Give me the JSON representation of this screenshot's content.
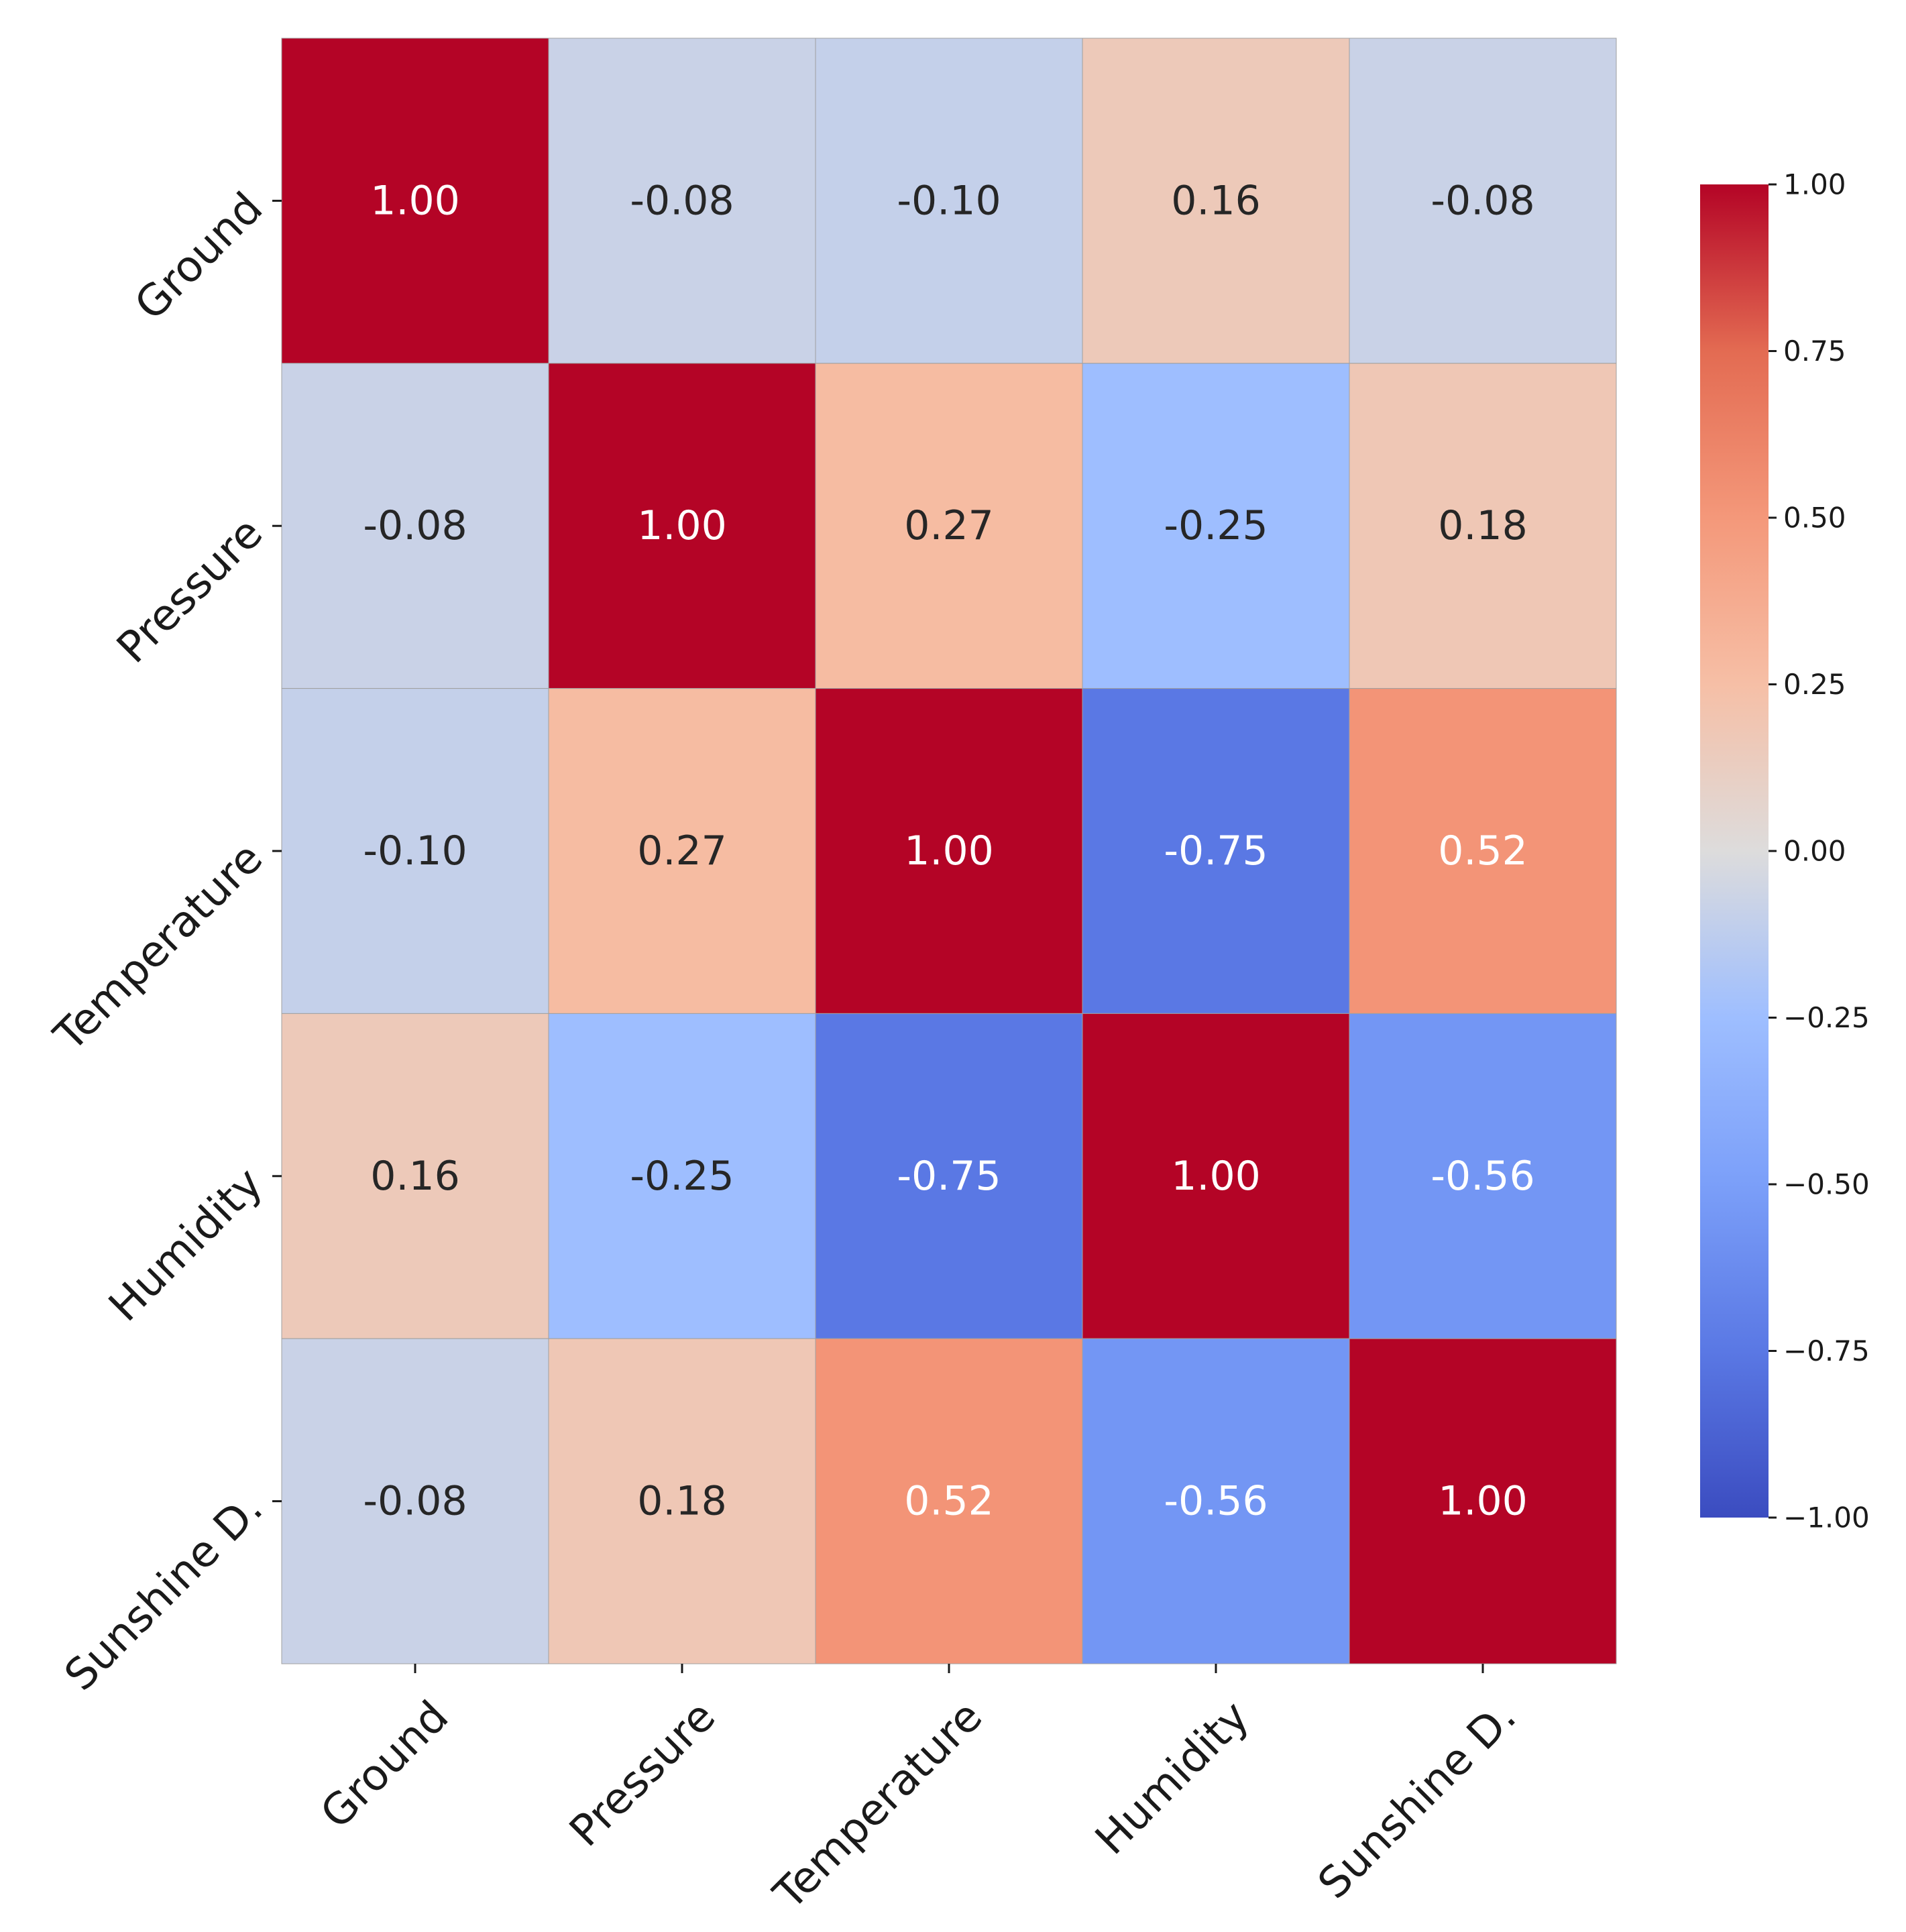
{
  "chart_data": {
    "type": "heatmap",
    "title": "",
    "xlabel": "",
    "ylabel": "",
    "row_labels": [
      "Ground",
      "Pressure",
      "Temperature",
      "Humidity",
      "Sunshine D."
    ],
    "col_labels": [
      "Ground",
      "Pressure",
      "Temperature",
      "Humidity",
      "Sunshine D."
    ],
    "values": [
      [
        1.0,
        -0.08,
        -0.1,
        0.16,
        -0.08
      ],
      [
        -0.08,
        1.0,
        0.27,
        -0.25,
        0.18
      ],
      [
        -0.1,
        0.27,
        1.0,
        -0.75,
        0.52
      ],
      [
        0.16,
        -0.25,
        -0.75,
        1.0,
        -0.56
      ],
      [
        -0.08,
        0.18,
        0.52,
        -0.56,
        1.0
      ]
    ],
    "annotations": [
      [
        "1.00",
        "-0.08",
        "-0.10",
        "0.16",
        "-0.08"
      ],
      [
        "-0.08",
        "1.00",
        "0.27",
        "-0.25",
        "0.18"
      ],
      [
        "-0.10",
        "0.27",
        "1.00",
        "-0.75",
        "0.52"
      ],
      [
        "0.16",
        "-0.25",
        "-0.75",
        "1.00",
        "-0.56"
      ],
      [
        "-0.08",
        "0.18",
        "0.52",
        "-0.56",
        "1.00"
      ]
    ],
    "colormap": "coolwarm",
    "vmin": -1.0,
    "vmax": 1.0,
    "colorbar_ticks": [
      1.0,
      0.75,
      0.5,
      0.25,
      0.0,
      -0.25,
      -0.5,
      -0.75,
      -1.0
    ],
    "colorbar_tick_labels": [
      "1.00",
      "0.75",
      "0.50",
      "0.25",
      "0.00",
      "−0.25",
      "−0.50",
      "−0.75",
      "−1.00"
    ],
    "colorbar_position": "right"
  }
}
